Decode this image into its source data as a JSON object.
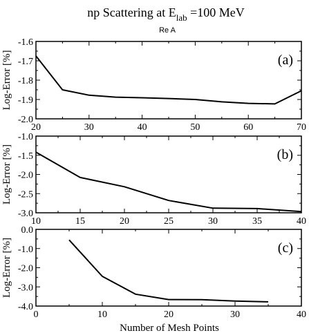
{
  "title": {
    "prefix": "np Scattering at  E",
    "subscript": "lab",
    "suffix": " =100 MeV"
  },
  "subtitle": "Re A",
  "ylabel": "Log-Error [%]",
  "xlabel": "Number of Mesh Points",
  "chart_data": [
    {
      "type": "line",
      "panel": "(a)",
      "xlim": [
        20,
        70
      ],
      "ylim": [
        -2.0,
        -1.6
      ],
      "xticks": [
        20,
        30,
        40,
        50,
        60,
        70
      ],
      "yticks": [
        -2.0,
        -1.9,
        -1.8,
        -1.7,
        -1.6
      ],
      "xtick_labels": [
        "20",
        "30",
        "40",
        "50",
        "60",
        "70"
      ],
      "ytick_labels": [
        "-2.0",
        "-1.9",
        "-1.8",
        "-1.7",
        "-1.6"
      ],
      "ylabel": "Log-Error [%]",
      "grid": false,
      "x": [
        20,
        25,
        30,
        35,
        40,
        45,
        50,
        55,
        60,
        65,
        70
      ],
      "y": [
        -1.675,
        -1.85,
        -1.878,
        -1.888,
        -1.891,
        -1.895,
        -1.9,
        -1.912,
        -1.92,
        -1.923,
        -1.855
      ]
    },
    {
      "type": "line",
      "panel": "(b)",
      "xlim": [
        10,
        40
      ],
      "ylim": [
        -3.0,
        -1.0
      ],
      "xticks": [
        10,
        15,
        20,
        25,
        30,
        35,
        40
      ],
      "yticks": [
        -3.0,
        -2.5,
        -2.0,
        -1.5,
        -1.0
      ],
      "xtick_labels": [
        "10",
        "15",
        "20",
        "25",
        "30",
        "35",
        "40"
      ],
      "ytick_labels": [
        "-3.0",
        "-2.5",
        "-2.0",
        "-1.5",
        "-1.0"
      ],
      "ylabel": "Log-Error [%]",
      "grid": false,
      "x": [
        10,
        15,
        20,
        25,
        30,
        35,
        40
      ],
      "y": [
        -1.42,
        -2.08,
        -2.32,
        -2.68,
        -2.88,
        -2.89,
        -2.97
      ]
    },
    {
      "type": "line",
      "panel": "(c)",
      "xlim": [
        0,
        40
      ],
      "ylim": [
        -4.0,
        0.0
      ],
      "xticks": [
        0,
        10,
        20,
        30,
        40
      ],
      "yticks": [
        -4.0,
        -3.0,
        -2.0,
        -1.0,
        0.0
      ],
      "xtick_labels": [
        "0",
        "10",
        "20",
        "30",
        "40"
      ],
      "ytick_labels": [
        "-4.0",
        "-3.0",
        "-2.0",
        "-1.0",
        "0.0"
      ],
      "ylabel": "Log-Error [%]",
      "xlabel": "Number of Mesh Points",
      "grid": false,
      "x": [
        5,
        10,
        15,
        20,
        25,
        30,
        35
      ],
      "y": [
        -0.55,
        -2.45,
        -3.38,
        -3.66,
        -3.67,
        -3.74,
        -3.78
      ]
    }
  ]
}
